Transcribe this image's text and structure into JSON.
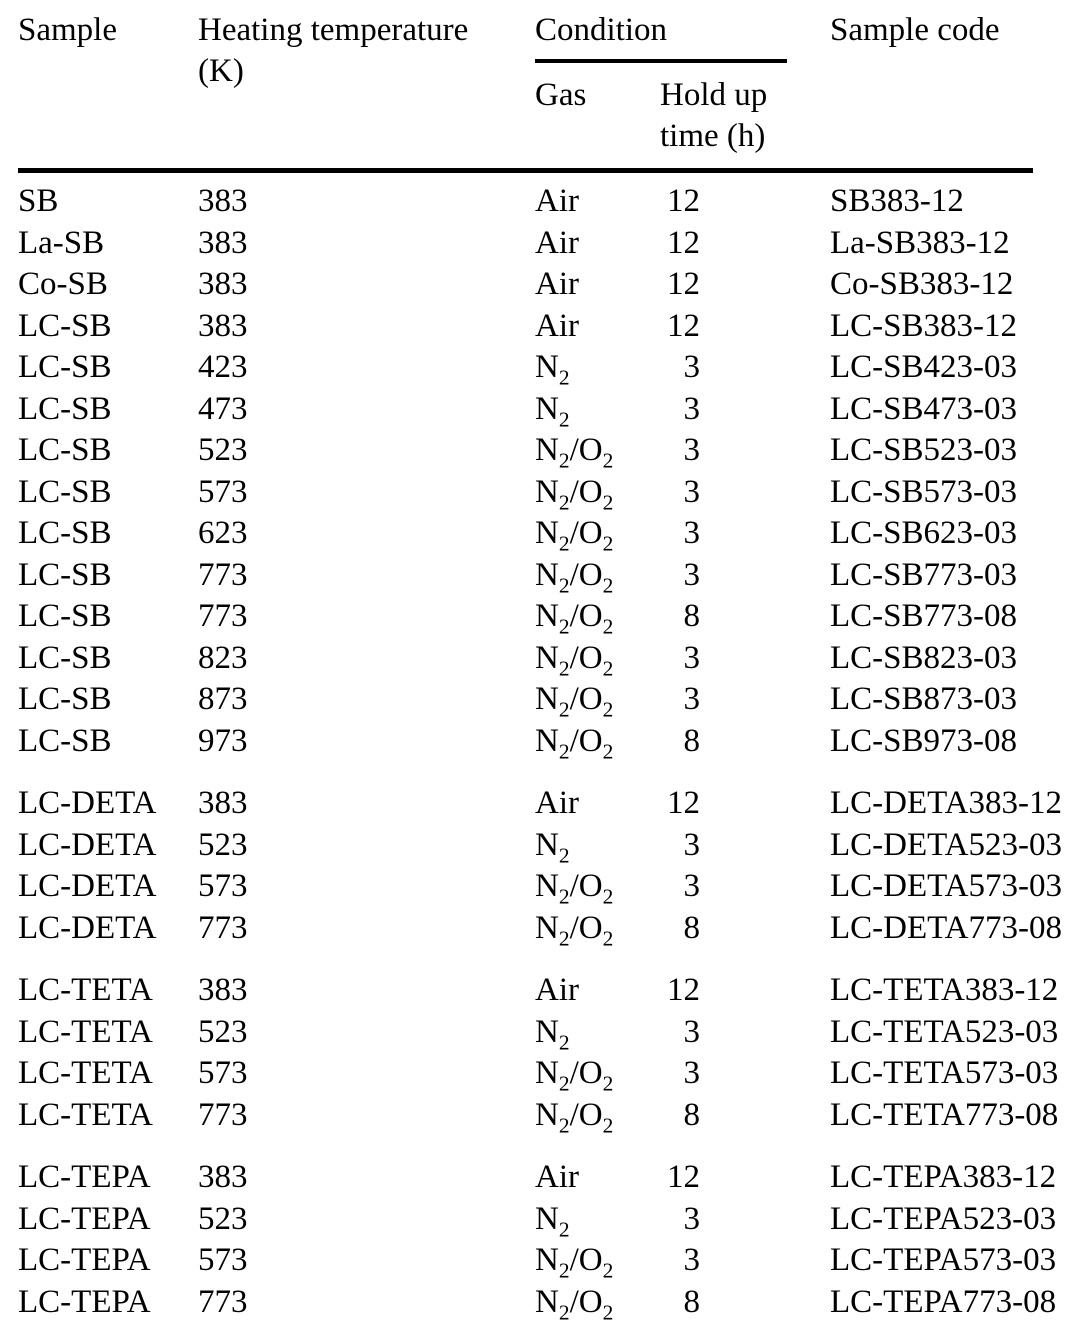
{
  "header": {
    "sample": "Sample",
    "heating_temperature": "Heating temperature (K)",
    "condition": "Condition",
    "gas": "Gas",
    "hold_up_time": "Hold up time (h)",
    "sample_code": "Sample code"
  },
  "colors": {
    "text": "#000000",
    "background": "#ffffff",
    "rule": "#000000"
  },
  "groups": [
    {
      "rows": [
        {
          "sample": "SB",
          "temperature": "383",
          "gas": "Air",
          "hold_up_time": "12",
          "code": "SB383-12"
        },
        {
          "sample": "La-SB",
          "temperature": "383",
          "gas": "Air",
          "hold_up_time": "12",
          "code": "La-SB383-12"
        },
        {
          "sample": "Co-SB",
          "temperature": "383",
          "gas": "Air",
          "hold_up_time": "12",
          "code": "Co-SB383-12"
        },
        {
          "sample": "LC-SB",
          "temperature": "383",
          "gas": "Air",
          "hold_up_time": "12",
          "code": "LC-SB383-12"
        },
        {
          "sample": "LC-SB",
          "temperature": "423",
          "gas": "N2",
          "hold_up_time": "3",
          "code": "LC-SB423-03"
        },
        {
          "sample": "LC-SB",
          "temperature": "473",
          "gas": "N2",
          "hold_up_time": "3",
          "code": "LC-SB473-03"
        },
        {
          "sample": "LC-SB",
          "temperature": "523",
          "gas": "N2/O2",
          "hold_up_time": "3",
          "code": "LC-SB523-03"
        },
        {
          "sample": "LC-SB",
          "temperature": "573",
          "gas": "N2/O2",
          "hold_up_time": "3",
          "code": "LC-SB573-03"
        },
        {
          "sample": "LC-SB",
          "temperature": "623",
          "gas": "N2/O2",
          "hold_up_time": "3",
          "code": "LC-SB623-03"
        },
        {
          "sample": "LC-SB",
          "temperature": "773",
          "gas": "N2/O2",
          "hold_up_time": "3",
          "code": "LC-SB773-03"
        },
        {
          "sample": "LC-SB",
          "temperature": "773",
          "gas": "N2/O2",
          "hold_up_time": "8",
          "code": "LC-SB773-08"
        },
        {
          "sample": "LC-SB",
          "temperature": "823",
          "gas": "N2/O2",
          "hold_up_time": "3",
          "code": "LC-SB823-03"
        },
        {
          "sample": "LC-SB",
          "temperature": "873",
          "gas": "N2/O2",
          "hold_up_time": "3",
          "code": "LC-SB873-03"
        },
        {
          "sample": "LC-SB",
          "temperature": "973",
          "gas": "N2/O2",
          "hold_up_time": "8",
          "code": "LC-SB973-08"
        }
      ]
    },
    {
      "rows": [
        {
          "sample": "LC-DETA",
          "temperature": "383",
          "gas": "Air",
          "hold_up_time": "12",
          "code": "LC-DETA383-12"
        },
        {
          "sample": "LC-DETA",
          "temperature": "523",
          "gas": "N2",
          "hold_up_time": "3",
          "code": "LC-DETA523-03"
        },
        {
          "sample": "LC-DETA",
          "temperature": "573",
          "gas": "N2/O2",
          "hold_up_time": "3",
          "code": "LC-DETA573-03"
        },
        {
          "sample": "LC-DETA",
          "temperature": "773",
          "gas": "N2/O2",
          "hold_up_time": "8",
          "code": "LC-DETA773-08"
        }
      ]
    },
    {
      "rows": [
        {
          "sample": "LC-TETA",
          "temperature": "383",
          "gas": "Air",
          "hold_up_time": "12",
          "code": "LC-TETA383-12"
        },
        {
          "sample": "LC-TETA",
          "temperature": "523",
          "gas": "N2",
          "hold_up_time": "3",
          "code": "LC-TETA523-03"
        },
        {
          "sample": "LC-TETA",
          "temperature": "573",
          "gas": "N2/O2",
          "hold_up_time": "3",
          "code": "LC-TETA573-03"
        },
        {
          "sample": "LC-TETA",
          "temperature": "773",
          "gas": "N2/O2",
          "hold_up_time": "8",
          "code": "LC-TETA773-08"
        }
      ]
    },
    {
      "rows": [
        {
          "sample": "LC-TEPA",
          "temperature": "383",
          "gas": "Air",
          "hold_up_time": "12",
          "code": "LC-TEPA383-12"
        },
        {
          "sample": "LC-TEPA",
          "temperature": "523",
          "gas": "N2",
          "hold_up_time": "3",
          "code": "LC-TEPA523-03"
        },
        {
          "sample": "LC-TEPA",
          "temperature": "573",
          "gas": "N2/O2",
          "hold_up_time": "3",
          "code": "LC-TEPA573-03"
        },
        {
          "sample": "LC-TEPA",
          "temperature": "773",
          "gas": "N2/O2",
          "hold_up_time": "8",
          "code": "LC-TEPA773-08"
        }
      ]
    }
  ]
}
